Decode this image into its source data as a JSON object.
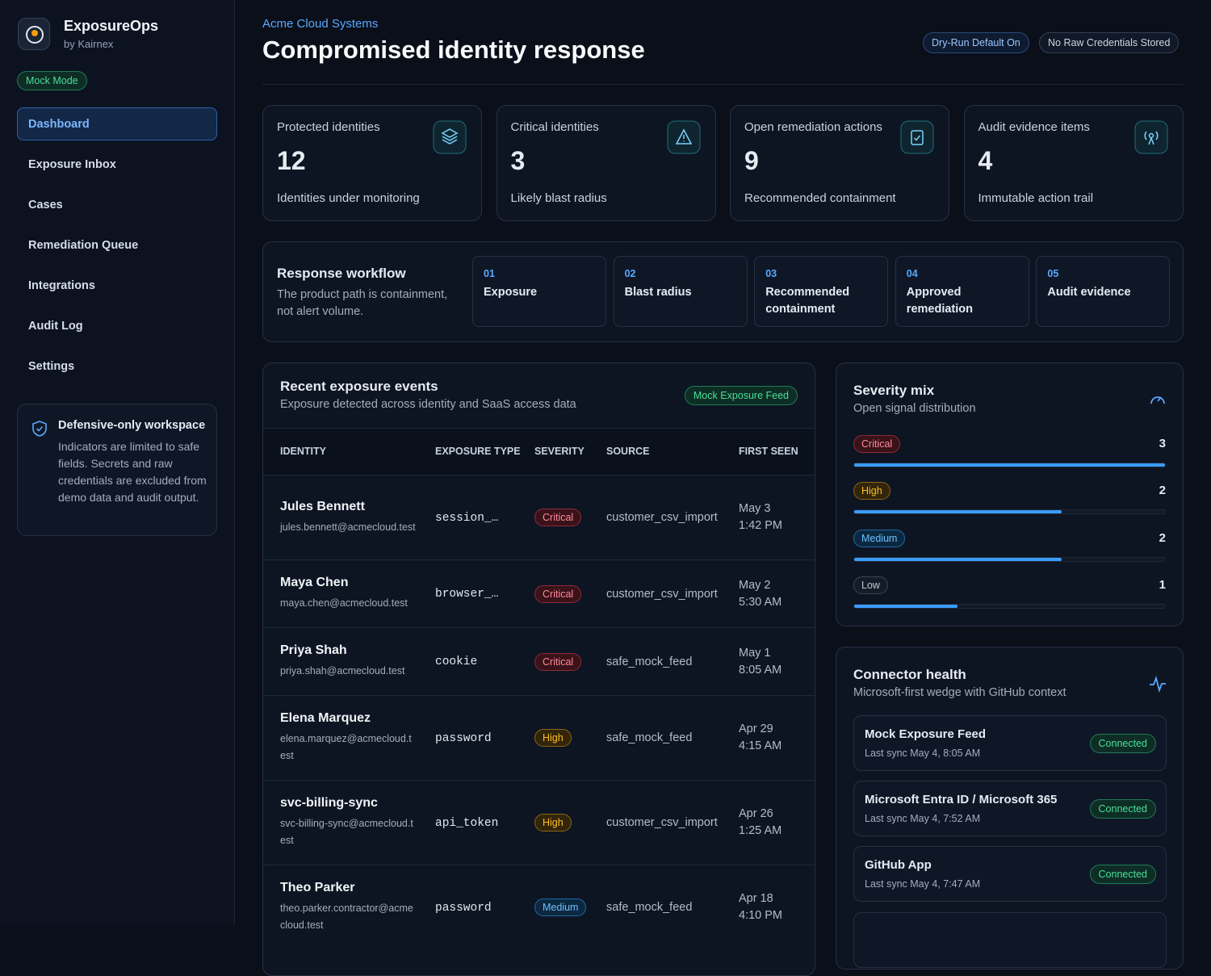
{
  "sidebar": {
    "brand": "ExposureOps",
    "byline": "by Kairnex",
    "mode_badge": "Mock Mode",
    "nav": [
      "Dashboard",
      "Exposure Inbox",
      "Cases",
      "Remediation Queue",
      "Integrations",
      "Audit Log",
      "Settings"
    ],
    "notice": {
      "title": "Defensive-only workspace",
      "text": "Indicators are limited to safe fields. Secrets and raw credentials are excluded from demo data and audit output."
    }
  },
  "header": {
    "org": "Acme Cloud Systems",
    "title": "Compromised identity response",
    "badges": [
      "Dry-Run Default On",
      "No Raw Credentials Stored"
    ]
  },
  "stats": [
    {
      "label": "Protected identities",
      "value": 12,
      "caption": "Identities under monitoring"
    },
    {
      "label": "Critical identities",
      "value": 3,
      "caption": "Likely blast radius"
    },
    {
      "label": "Open remediation actions",
      "value": 9,
      "caption": "Recommended containment"
    },
    {
      "label": "Audit evidence items",
      "value": 4,
      "caption": "Immutable action trail"
    }
  ],
  "workflow": {
    "title": "Response workflow",
    "subtitle": "The product path is containment, not alert volume.",
    "steps": [
      {
        "num": "01",
        "label": "Exposure"
      },
      {
        "num": "02",
        "label": "Blast radius"
      },
      {
        "num": "03",
        "label": "Recommended containment"
      },
      {
        "num": "04",
        "label": "Approved remediation"
      },
      {
        "num": "05",
        "label": "Audit evidence"
      }
    ]
  },
  "events": {
    "title": "Recent exposure events",
    "subtitle": "Exposure detected across identity and SaaS access data",
    "badge": "Mock Exposure Feed",
    "columns": [
      "IDENTITY",
      "EXPOSURE TYPE",
      "SEVERITY",
      "SOURCE",
      "FIRST SEEN"
    ],
    "rows": [
      {
        "identity": "Jules Bennett",
        "email": "jules.bennett@acmecloud.test",
        "type": "session_…",
        "severity": "Critical",
        "source": "customer_csv_import",
        "seen": "May 3 1:42 PM"
      },
      {
        "identity": "Maya Chen",
        "email": "maya.chen@acmecloud.test",
        "type": "browser_…",
        "severity": "Critical",
        "source": "customer_csv_import",
        "seen": "May 2 5:30 AM"
      },
      {
        "identity": "Priya Shah",
        "email": "priya.shah@acmecloud.test",
        "type": "cookie",
        "severity": "Critical",
        "source": "safe_mock_feed",
        "seen": "May 1 8:05 AM"
      },
      {
        "identity": "Elena Marquez",
        "email": "elena.marquez@acmecloud.test",
        "type": "password",
        "severity": "High",
        "source": "safe_mock_feed",
        "seen": "Apr 29 4:15 AM"
      },
      {
        "identity": "svc-billing-sync",
        "email": "svc-billing-sync@acmecloud.test",
        "type": "api_token",
        "severity": "High",
        "source": "customer_csv_import",
        "seen": "Apr 26 1:25 AM"
      },
      {
        "identity": "Theo Parker",
        "email": "theo.parker.contractor@acmecloud.test",
        "type": "password",
        "severity": "Medium",
        "source": "safe_mock_feed",
        "seen": "Apr 18 4:10 PM"
      }
    ]
  },
  "severity": {
    "title": "Severity mix",
    "subtitle": "Open signal distribution",
    "levels": [
      {
        "name": "Critical",
        "count": 3
      },
      {
        "name": "High",
        "count": 2
      },
      {
        "name": "Medium",
        "count": 2
      },
      {
        "name": "Low",
        "count": 1
      }
    ]
  },
  "connectors": {
    "title": "Connector health",
    "subtitle": "Microsoft-first wedge with GitHub context",
    "items": [
      {
        "name": "Mock Exposure Feed",
        "sync": "Last sync May 4, 8:05 AM",
        "status": "Connected"
      },
      {
        "name": "Microsoft Entra ID / Microsoft 365",
        "sync": "Last sync May 4, 7:52 AM",
        "status": "Connected"
      },
      {
        "name": "GitHub App",
        "sync": "Last sync May 4, 7:47 AM",
        "status": "Connected"
      }
    ]
  }
}
